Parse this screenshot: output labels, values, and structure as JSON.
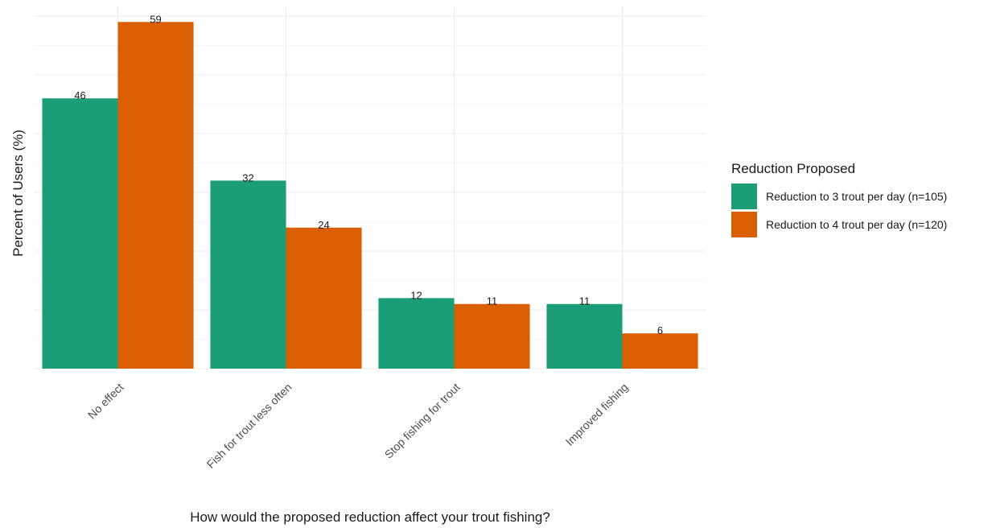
{
  "chart_data": {
    "type": "bar",
    "categories": [
      "No effect",
      "Fish for trout less often",
      "Stop fishing for trout",
      "Improved fishing"
    ],
    "series": [
      {
        "name": "Reduction to 3 trout per day (n=105)",
        "values": [
          46,
          32,
          12,
          11
        ],
        "color": "#1b9e77"
      },
      {
        "name": "Reduction to 4 trout per day (n=120)",
        "values": [
          59,
          24,
          11,
          6
        ],
        "color": "#d95f02"
      }
    ],
    "xlabel": "How would the proposed reduction affect your trout fishing?",
    "ylabel": "Percent of Users (%)",
    "legend_title": "Reduction Proposed",
    "legend_position": "right",
    "ylim": [
      0,
      60
    ],
    "y_gridlines": [
      0,
      10,
      20,
      30,
      40,
      50,
      60
    ],
    "y_tick_labels_shown": false,
    "grid": true
  }
}
